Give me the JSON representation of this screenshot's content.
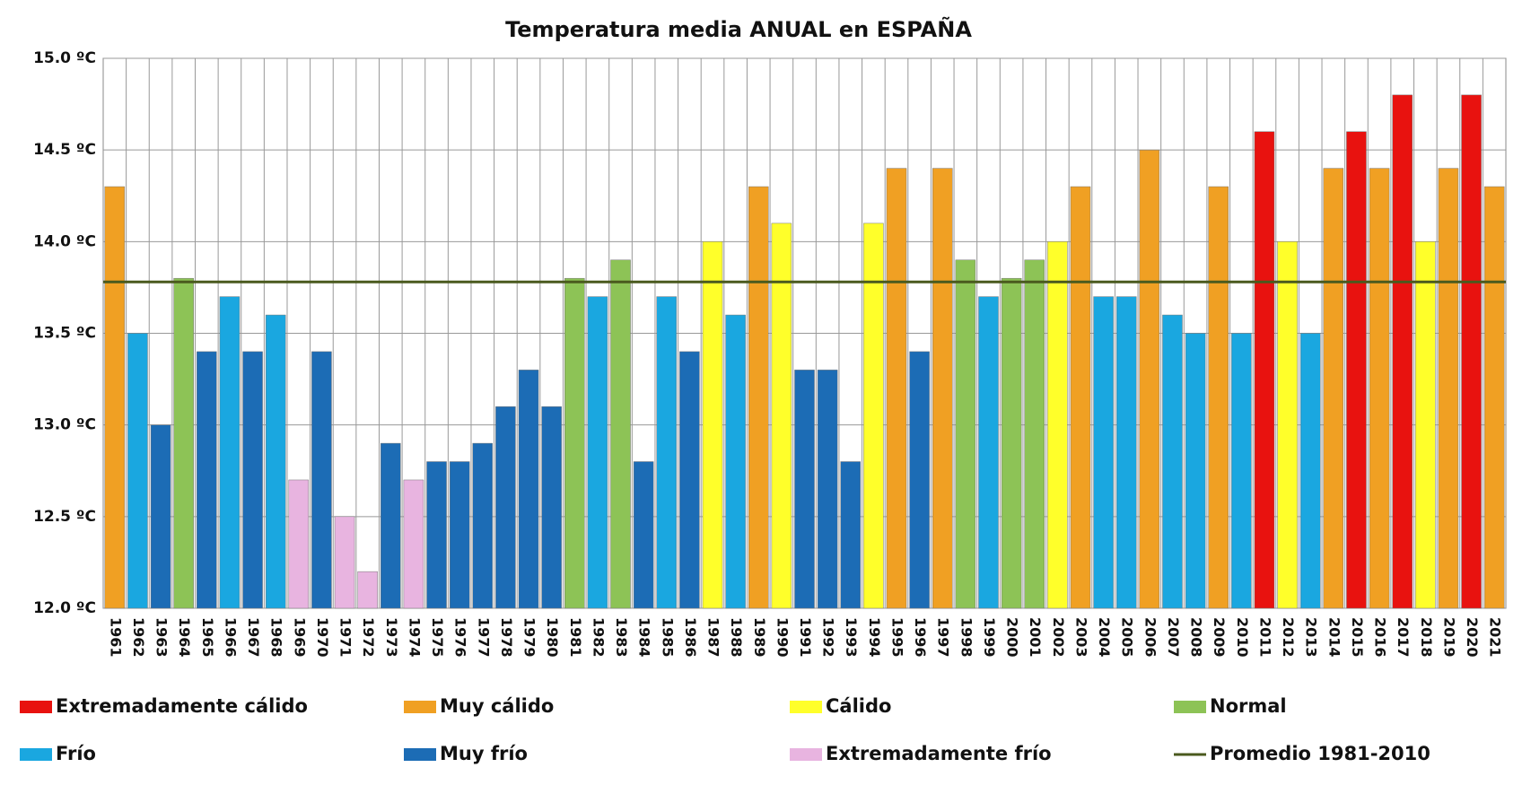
{
  "chart_data": {
    "type": "bar",
    "title": "Temperatura media ANUAL en ESPAÑA",
    "categories": [
      "1961",
      "1962",
      "1963",
      "1964",
      "1965",
      "1966",
      "1967",
      "1968",
      "1969",
      "1970",
      "1971",
      "1972",
      "1973",
      "1974",
      "1975",
      "1976",
      "1977",
      "1978",
      "1979",
      "1980",
      "1981",
      "1982",
      "1983",
      "1984",
      "1985",
      "1986",
      "1987",
      "1988",
      "1989",
      "1990",
      "1991",
      "1992",
      "1993",
      "1994",
      "1995",
      "1996",
      "1997",
      "1998",
      "1999",
      "2000",
      "2001",
      "2002",
      "2003",
      "2004",
      "2005",
      "2006",
      "2007",
      "2008",
      "2009",
      "2010",
      "2011",
      "2012",
      "2013",
      "2014",
      "2015",
      "2016",
      "2017",
      "2018",
      "2019",
      "2020",
      "2021"
    ],
    "values": [
      14.3,
      13.5,
      13.0,
      13.8,
      13.4,
      13.7,
      13.4,
      13.6,
      12.7,
      13.4,
      12.5,
      12.2,
      12.9,
      12.7,
      12.8,
      12.8,
      12.9,
      13.1,
      13.3,
      13.1,
      13.8,
      13.7,
      13.9,
      12.8,
      13.7,
      13.4,
      14.0,
      13.6,
      14.3,
      14.1,
      13.3,
      13.3,
      12.8,
      14.1,
      14.4,
      13.4,
      14.4,
      13.9,
      13.7,
      13.8,
      13.9,
      14.0,
      14.3,
      13.7,
      13.7,
      14.5,
      13.6,
      13.5,
      14.3,
      13.5,
      14.6,
      14.0,
      13.5,
      14.4,
      14.6,
      14.4,
      14.8,
      14.0,
      14.4,
      14.8,
      14.3
    ],
    "colors": [
      "#f0a023",
      "#1aa7e0",
      "#1c6cb5",
      "#8dc356",
      "#1c6cb5",
      "#1aa7e0",
      "#1c6cb5",
      "#1aa7e0",
      "#e8b4e0",
      "#1c6cb5",
      "#e8b4e0",
      "#e8b4e0",
      "#1c6cb5",
      "#e8b4e0",
      "#1c6cb5",
      "#1c6cb5",
      "#1c6cb5",
      "#1c6cb5",
      "#1c6cb5",
      "#1c6cb5",
      "#8dc356",
      "#1aa7e0",
      "#8dc356",
      "#1c6cb5",
      "#1aa7e0",
      "#1c6cb5",
      "#ffff2a",
      "#1aa7e0",
      "#f0a023",
      "#ffff2a",
      "#1c6cb5",
      "#1c6cb5",
      "#1c6cb5",
      "#ffff2a",
      "#f0a023",
      "#1c6cb5",
      "#f0a023",
      "#8dc356",
      "#1aa7e0",
      "#8dc356",
      "#8dc356",
      "#ffff2a",
      "#f0a023",
      "#1aa7e0",
      "#1aa7e0",
      "#f0a023",
      "#1aa7e0",
      "#1aa7e0",
      "#f0a023",
      "#1aa7e0",
      "#e8120f",
      "#ffff2a",
      "#1aa7e0",
      "#f0a023",
      "#e8120f",
      "#f0a023",
      "#e8120f",
      "#ffff2a",
      "#f0a023",
      "#e8120f",
      "#f0a023"
    ],
    "legend": [
      {
        "name": "Extremadamente cálido",
        "color": "#e8120f"
      },
      {
        "name": "Muy cálido",
        "color": "#f0a023"
      },
      {
        "name": "Cálido",
        "color": "#ffff2a"
      },
      {
        "name": "Normal",
        "color": "#8dc356"
      },
      {
        "name": "Frío",
        "color": "#1aa7e0"
      },
      {
        "name": "Muy frío",
        "color": "#1c6cb5"
      },
      {
        "name": "Extremadamente frío",
        "color": "#e8b4e0"
      }
    ],
    "reference_line": {
      "name": "Promedio 1981-2010",
      "value": 13.78,
      "color": "#4a5a1e"
    },
    "ylim": [
      12.0,
      15.0
    ],
    "yticks": [
      {
        "value": 12.0,
        "label": "12.0 ºC"
      },
      {
        "value": 12.5,
        "label": "12.5 ºC"
      },
      {
        "value": 13.0,
        "label": "13.0 ºC"
      },
      {
        "value": 13.5,
        "label": "13.5 ºC"
      },
      {
        "value": 14.0,
        "label": "14.0 ºC"
      },
      {
        "value": 14.5,
        "label": "14.5 ºC"
      },
      {
        "value": 15.0,
        "label": "15.0 ºC"
      }
    ],
    "grid": true
  }
}
